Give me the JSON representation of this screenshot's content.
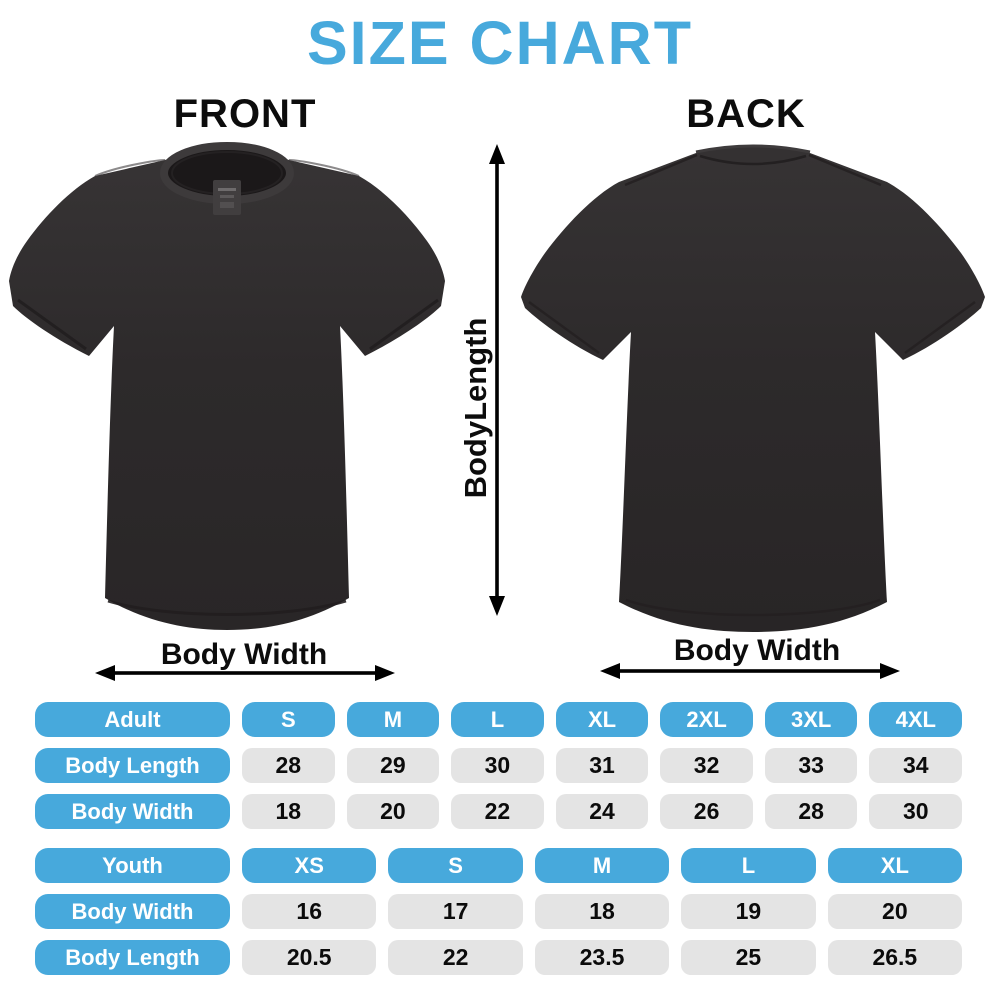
{
  "title": "SIZE CHART",
  "front_view": {
    "label": "FRONT",
    "body_width_label": "Body Width"
  },
  "back_view": {
    "label": "BACK",
    "body_width_label": "Body Width"
  },
  "body_length_label": "BodyLength",
  "colors": {
    "accent_blue": "#47a9dc",
    "value_cell_gray": "#e4e4e4",
    "shirt_dark": "#2d2a2b",
    "text_black": "#0c0c0c",
    "text_white": "#ffffff"
  },
  "chart_data": [
    {
      "type": "table",
      "title": "Adult",
      "columns": [
        "Adult",
        "S",
        "M",
        "L",
        "XL",
        "2XL",
        "3XL",
        "4XL"
      ],
      "rows": [
        {
          "label": "Body Length",
          "values": [
            "28",
            "29",
            "30",
            "31",
            "32",
            "33",
            "34"
          ]
        },
        {
          "label": "Body Width",
          "values": [
            "18",
            "20",
            "22",
            "24",
            "26",
            "28",
            "30"
          ]
        }
      ]
    },
    {
      "type": "table",
      "title": "Youth",
      "columns": [
        "Youth",
        "XS",
        "S",
        "M",
        "L",
        "XL"
      ],
      "rows": [
        {
          "label": "Body Width",
          "values": [
            "16",
            "17",
            "18",
            "19",
            "20"
          ]
        },
        {
          "label": "Body Length",
          "values": [
            "20.5",
            "22",
            "23.5",
            "25",
            "26.5"
          ]
        }
      ]
    }
  ]
}
